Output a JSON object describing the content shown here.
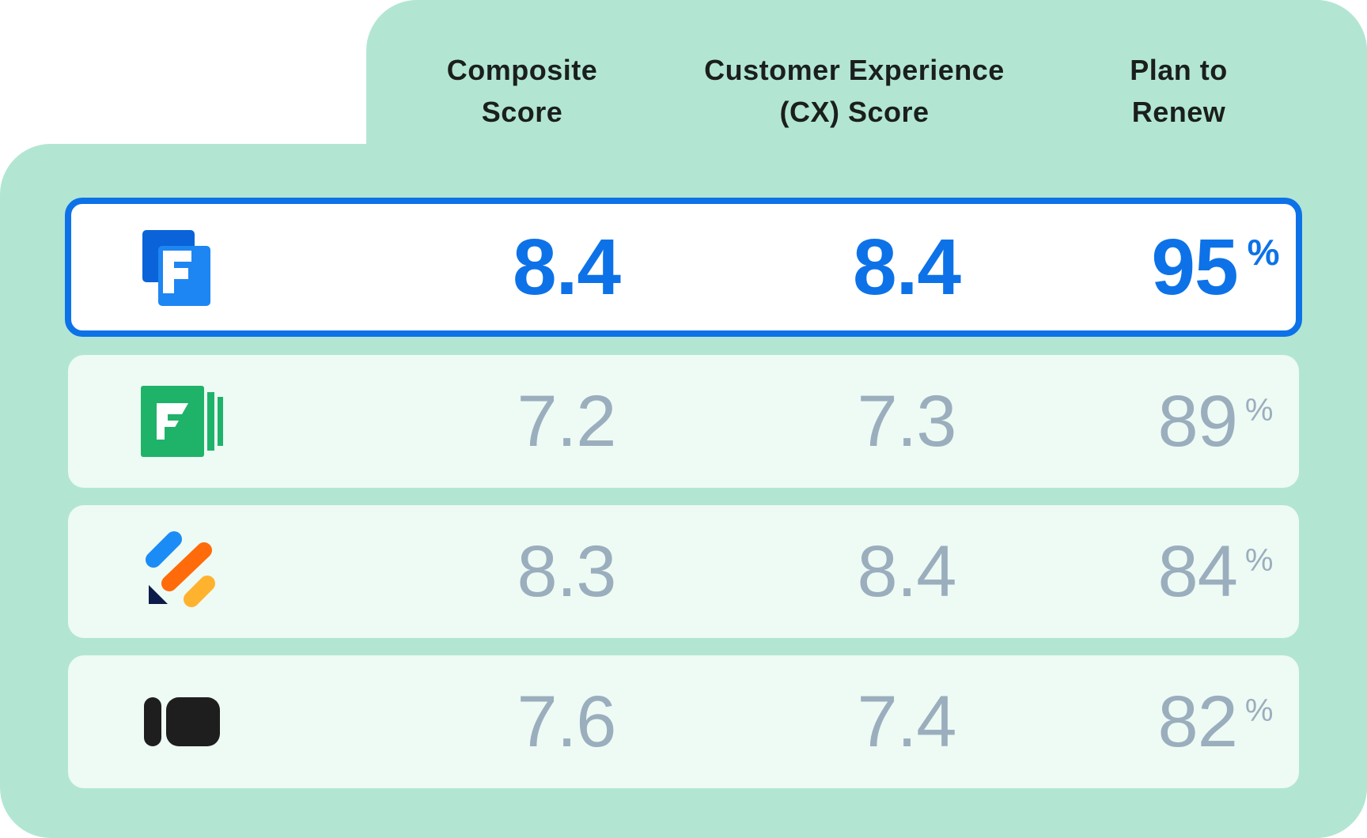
{
  "headers": {
    "composite": {
      "line1": "Composite",
      "line2": "Score"
    },
    "cx": {
      "line1": "Customer Experience",
      "line2": "(CX) Score"
    },
    "renew": {
      "line1": "Plan to",
      "line2": "Renew"
    }
  },
  "percent_sign": "%",
  "rows": [
    {
      "logo": "blue-f-logo",
      "composite": "8.4",
      "cx": "8.4",
      "renew": "95",
      "highlighted": true
    },
    {
      "logo": "green-f-logo",
      "composite": "7.2",
      "cx": "7.3",
      "renew": "89",
      "highlighted": false
    },
    {
      "logo": "multicolor-stripes-logo",
      "composite": "8.3",
      "cx": "8.4",
      "renew": "84",
      "highlighted": false
    },
    {
      "logo": "black-pill-logo",
      "composite": "7.6",
      "cx": "7.4",
      "renew": "82",
      "highlighted": false
    }
  ],
  "colors": {
    "panel": "#b2e6d3",
    "row": "#eefaf4",
    "highlight": "#0d72e8",
    "muted_value": "#9aaebd",
    "header_text": "#1a1f1d"
  }
}
